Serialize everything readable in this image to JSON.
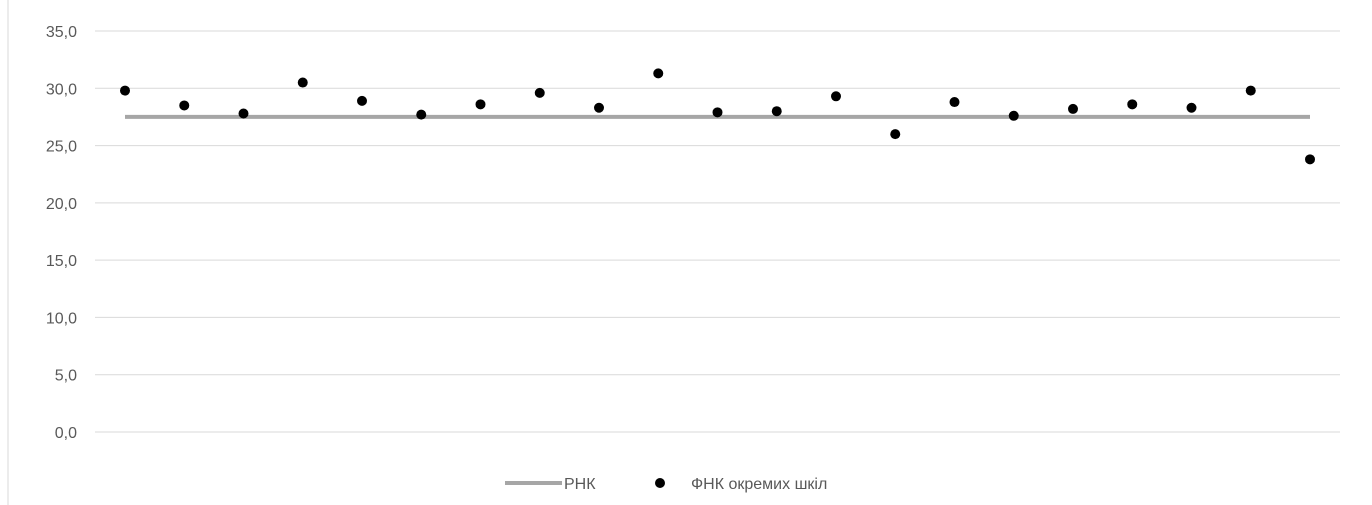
{
  "chart_data": {
    "type": "scatter",
    "title": "",
    "xlabel": "",
    "ylabel": "",
    "ylim": [
      0,
      35
    ],
    "y_ticks": [
      "0,0",
      "5,0",
      "10,0",
      "15,0",
      "20,0",
      "25,0",
      "30,0",
      "35,0"
    ],
    "grid": true,
    "legend_position": "bottom",
    "x": [
      1,
      2,
      3,
      4,
      5,
      6,
      7,
      8,
      9,
      10,
      11,
      12,
      13,
      14,
      15,
      16,
      17,
      18,
      19,
      20,
      21
    ],
    "series": [
      {
        "name": "РНК",
        "kind": "line",
        "color": "#a6a6a6",
        "values": [
          27.5,
          27.5,
          27.5,
          27.5,
          27.5,
          27.5,
          27.5,
          27.5,
          27.5,
          27.5,
          27.5,
          27.5,
          27.5,
          27.5,
          27.5,
          27.5,
          27.5,
          27.5,
          27.5,
          27.5,
          27.5
        ]
      },
      {
        "name": "ФНК окремих шкіл",
        "kind": "scatter",
        "color": "#000000",
        "values": [
          29.8,
          28.5,
          27.8,
          30.5,
          28.9,
          27.7,
          28.6,
          29.6,
          28.3,
          31.3,
          27.9,
          28.0,
          29.3,
          26.0,
          28.8,
          27.6,
          28.2,
          28.6,
          28.3,
          29.8,
          23.8
        ]
      }
    ]
  },
  "colors": {
    "grid": "#d9d9d9",
    "axis": "#d9d9d9",
    "line_series": "#a6a6a6",
    "scatter_series": "#000000"
  }
}
